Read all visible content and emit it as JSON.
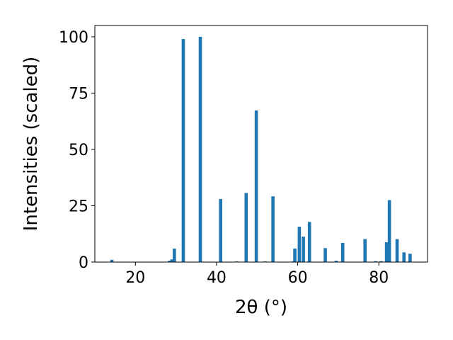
{
  "chart_data": {
    "type": "bar",
    "title": "",
    "xlabel": "2θ (°)",
    "ylabel": "Intensities (scaled)",
    "xlim": [
      10,
      92
    ],
    "ylim": [
      0,
      105
    ],
    "xticks": [
      20,
      40,
      60,
      80
    ],
    "yticks": [
      0,
      25,
      50,
      75,
      100
    ],
    "grid": false,
    "legend": "none",
    "bar_color": "#1f77b4",
    "bar_width": 0.8,
    "x": [
      14.2,
      28.4,
      29.0,
      29.6,
      31.8,
      36.0,
      41.0,
      45.0,
      47.3,
      49.8,
      52.0,
      53.9,
      58.9,
      59.3,
      60.4,
      61.4,
      62.9,
      66.8,
      69.5,
      71.1,
      76.6,
      79.2,
      80.6,
      81.9,
      82.6,
      84.5,
      86.2,
      87.7
    ],
    "y": [
      1.0,
      0.6,
      1.2,
      6.0,
      99.0,
      100.0,
      28.0,
      0.3,
      30.7,
      67.3,
      0.3,
      29.2,
      0.3,
      6.0,
      15.7,
      11.3,
      17.8,
      6.2,
      0.6,
      8.5,
      10.2,
      0.4,
      0.4,
      8.8,
      27.5,
      10.2,
      4.3,
      3.7
    ]
  }
}
